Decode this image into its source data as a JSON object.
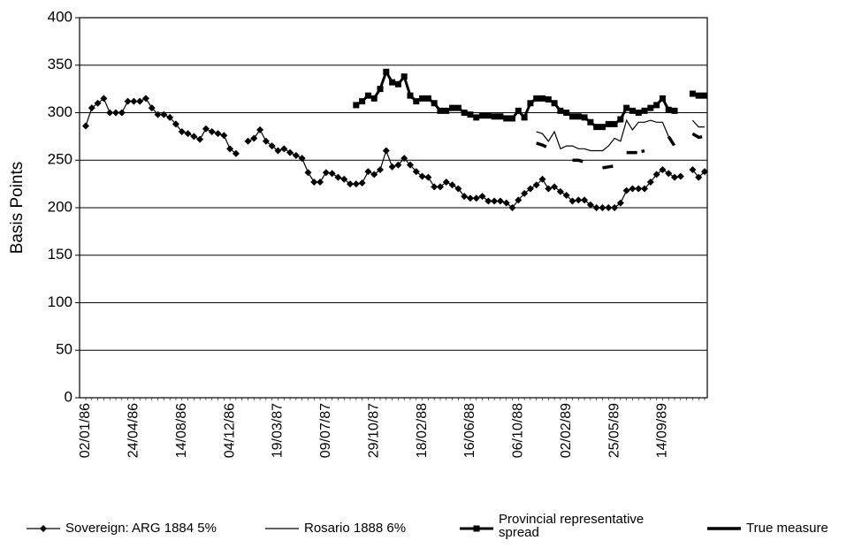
{
  "chart_data": {
    "type": "line",
    "y_label": "Basis Points",
    "categories": [
      "02/01/86",
      null,
      null,
      null,
      null,
      null,
      null,
      null,
      "24/04/86",
      null,
      null,
      null,
      null,
      null,
      null,
      null,
      "14/08/86",
      null,
      null,
      null,
      null,
      null,
      null,
      null,
      "04/12/86",
      null,
      null,
      null,
      null,
      null,
      null,
      null,
      "19/03/87",
      null,
      null,
      null,
      null,
      null,
      null,
      null,
      "09/07/87",
      null,
      null,
      null,
      null,
      null,
      null,
      null,
      "29/10/87",
      null,
      null,
      null,
      null,
      null,
      null,
      null,
      "18/02/88",
      null,
      null,
      null,
      null,
      null,
      null,
      null,
      "16/06/88",
      null,
      null,
      null,
      null,
      null,
      null,
      null,
      "06/10/88",
      null,
      null,
      null,
      null,
      null,
      null,
      null,
      "02/02/89",
      null,
      null,
      null,
      null,
      null,
      null,
      null,
      "25/05/89",
      null,
      null,
      null,
      null,
      null,
      null,
      null,
      "14/09/89",
      null,
      null,
      null,
      null,
      null,
      null,
      null
    ],
    "series": [
      {
        "name": "Sovereign: ARG 1884 5%",
        "color": "#000000",
        "marker": "diamond",
        "line_width": 1.2,
        "values": [
          286,
          305,
          310,
          315,
          300,
          300,
          300,
          312,
          312,
          312,
          315,
          305,
          298,
          298,
          295,
          288,
          280,
          278,
          275,
          272,
          283,
          280,
          278,
          276,
          262,
          257,
          null,
          270,
          273,
          282,
          270,
          265,
          260,
          262,
          258,
          255,
          252,
          237,
          227,
          227,
          237,
          236,
          232,
          230,
          225,
          225,
          226,
          238,
          235,
          240,
          260,
          243,
          245,
          252,
          245,
          238,
          233,
          232,
          222,
          222,
          227,
          224,
          220,
          212,
          210,
          210,
          212,
          207,
          207,
          207,
          205,
          200,
          208,
          215,
          220,
          224,
          230,
          220,
          222,
          217,
          213,
          207,
          208,
          208,
          203,
          200,
          200,
          200,
          200,
          205,
          218,
          220,
          220,
          220,
          227,
          235,
          240,
          236,
          232,
          233,
          null,
          240,
          232,
          238
        ]
      },
      {
        "name": "Rosario 1888 6%",
        "color": "#000000",
        "marker": "none",
        "line_width": 1.2,
        "values": [
          null,
          null,
          null,
          null,
          null,
          null,
          null,
          null,
          null,
          null,
          null,
          null,
          null,
          null,
          null,
          null,
          null,
          null,
          null,
          null,
          null,
          null,
          null,
          null,
          null,
          null,
          null,
          null,
          null,
          null,
          null,
          null,
          null,
          null,
          null,
          null,
          null,
          null,
          null,
          null,
          null,
          null,
          null,
          null,
          null,
          null,
          null,
          null,
          null,
          null,
          null,
          null,
          null,
          null,
          null,
          null,
          null,
          null,
          null,
          null,
          null,
          null,
          null,
          null,
          null,
          null,
          null,
          null,
          null,
          null,
          null,
          null,
          null,
          null,
          null,
          280,
          278,
          270,
          280,
          262,
          265,
          265,
          262,
          262,
          260,
          260,
          260,
          265,
          273,
          270,
          292,
          282,
          290,
          290,
          292,
          290,
          290,
          275,
          null,
          null,
          null,
          292,
          285,
          285
        ]
      },
      {
        "name": "Provincial representative spread",
        "color": "#000000",
        "marker": "square",
        "line_width": 3,
        "values": [
          null,
          null,
          null,
          null,
          null,
          null,
          null,
          null,
          null,
          null,
          null,
          null,
          null,
          null,
          null,
          null,
          null,
          null,
          null,
          null,
          null,
          null,
          null,
          null,
          null,
          null,
          null,
          null,
          null,
          null,
          null,
          null,
          null,
          null,
          null,
          null,
          null,
          null,
          null,
          null,
          null,
          null,
          null,
          null,
          null,
          308,
          312,
          318,
          315,
          325,
          343,
          332,
          330,
          338,
          318,
          312,
          315,
          315,
          310,
          302,
          302,
          305,
          305,
          300,
          298,
          295,
          297,
          297,
          296,
          296,
          294,
          294,
          302,
          295,
          310,
          315,
          315,
          314,
          310,
          302,
          300,
          296,
          296,
          295,
          290,
          285,
          285,
          288,
          288,
          293,
          305,
          302,
          300,
          302,
          305,
          308,
          315,
          303,
          302,
          null,
          null,
          320,
          318,
          318
        ]
      },
      {
        "name": "True measure",
        "color": "#000000",
        "marker": "none",
        "line_width": 3.5,
        "values": [
          null,
          null,
          null,
          null,
          null,
          null,
          null,
          null,
          null,
          null,
          null,
          null,
          null,
          null,
          null,
          null,
          null,
          null,
          null,
          null,
          null,
          null,
          null,
          null,
          null,
          null,
          null,
          null,
          null,
          null,
          null,
          null,
          null,
          null,
          null,
          null,
          null,
          null,
          null,
          null,
          null,
          null,
          null,
          null,
          null,
          null,
          null,
          null,
          null,
          null,
          null,
          null,
          null,
          null,
          null,
          null,
          null,
          null,
          null,
          null,
          null,
          null,
          null,
          null,
          null,
          null,
          null,
          null,
          null,
          null,
          null,
          null,
          null,
          null,
          null,
          268,
          266,
          263,
          null,
          null,
          null,
          250,
          250,
          248,
          null,
          null,
          242,
          243,
          244,
          null,
          258,
          258,
          258,
          260,
          null,
          null,
          null,
          275,
          265,
          null,
          null,
          278,
          274,
          275
        ]
      }
    ],
    "ylim": [
      0,
      400
    ],
    "yticks": [
      0,
      50,
      100,
      150,
      200,
      250,
      300,
      350,
      400
    ],
    "grid": true
  }
}
